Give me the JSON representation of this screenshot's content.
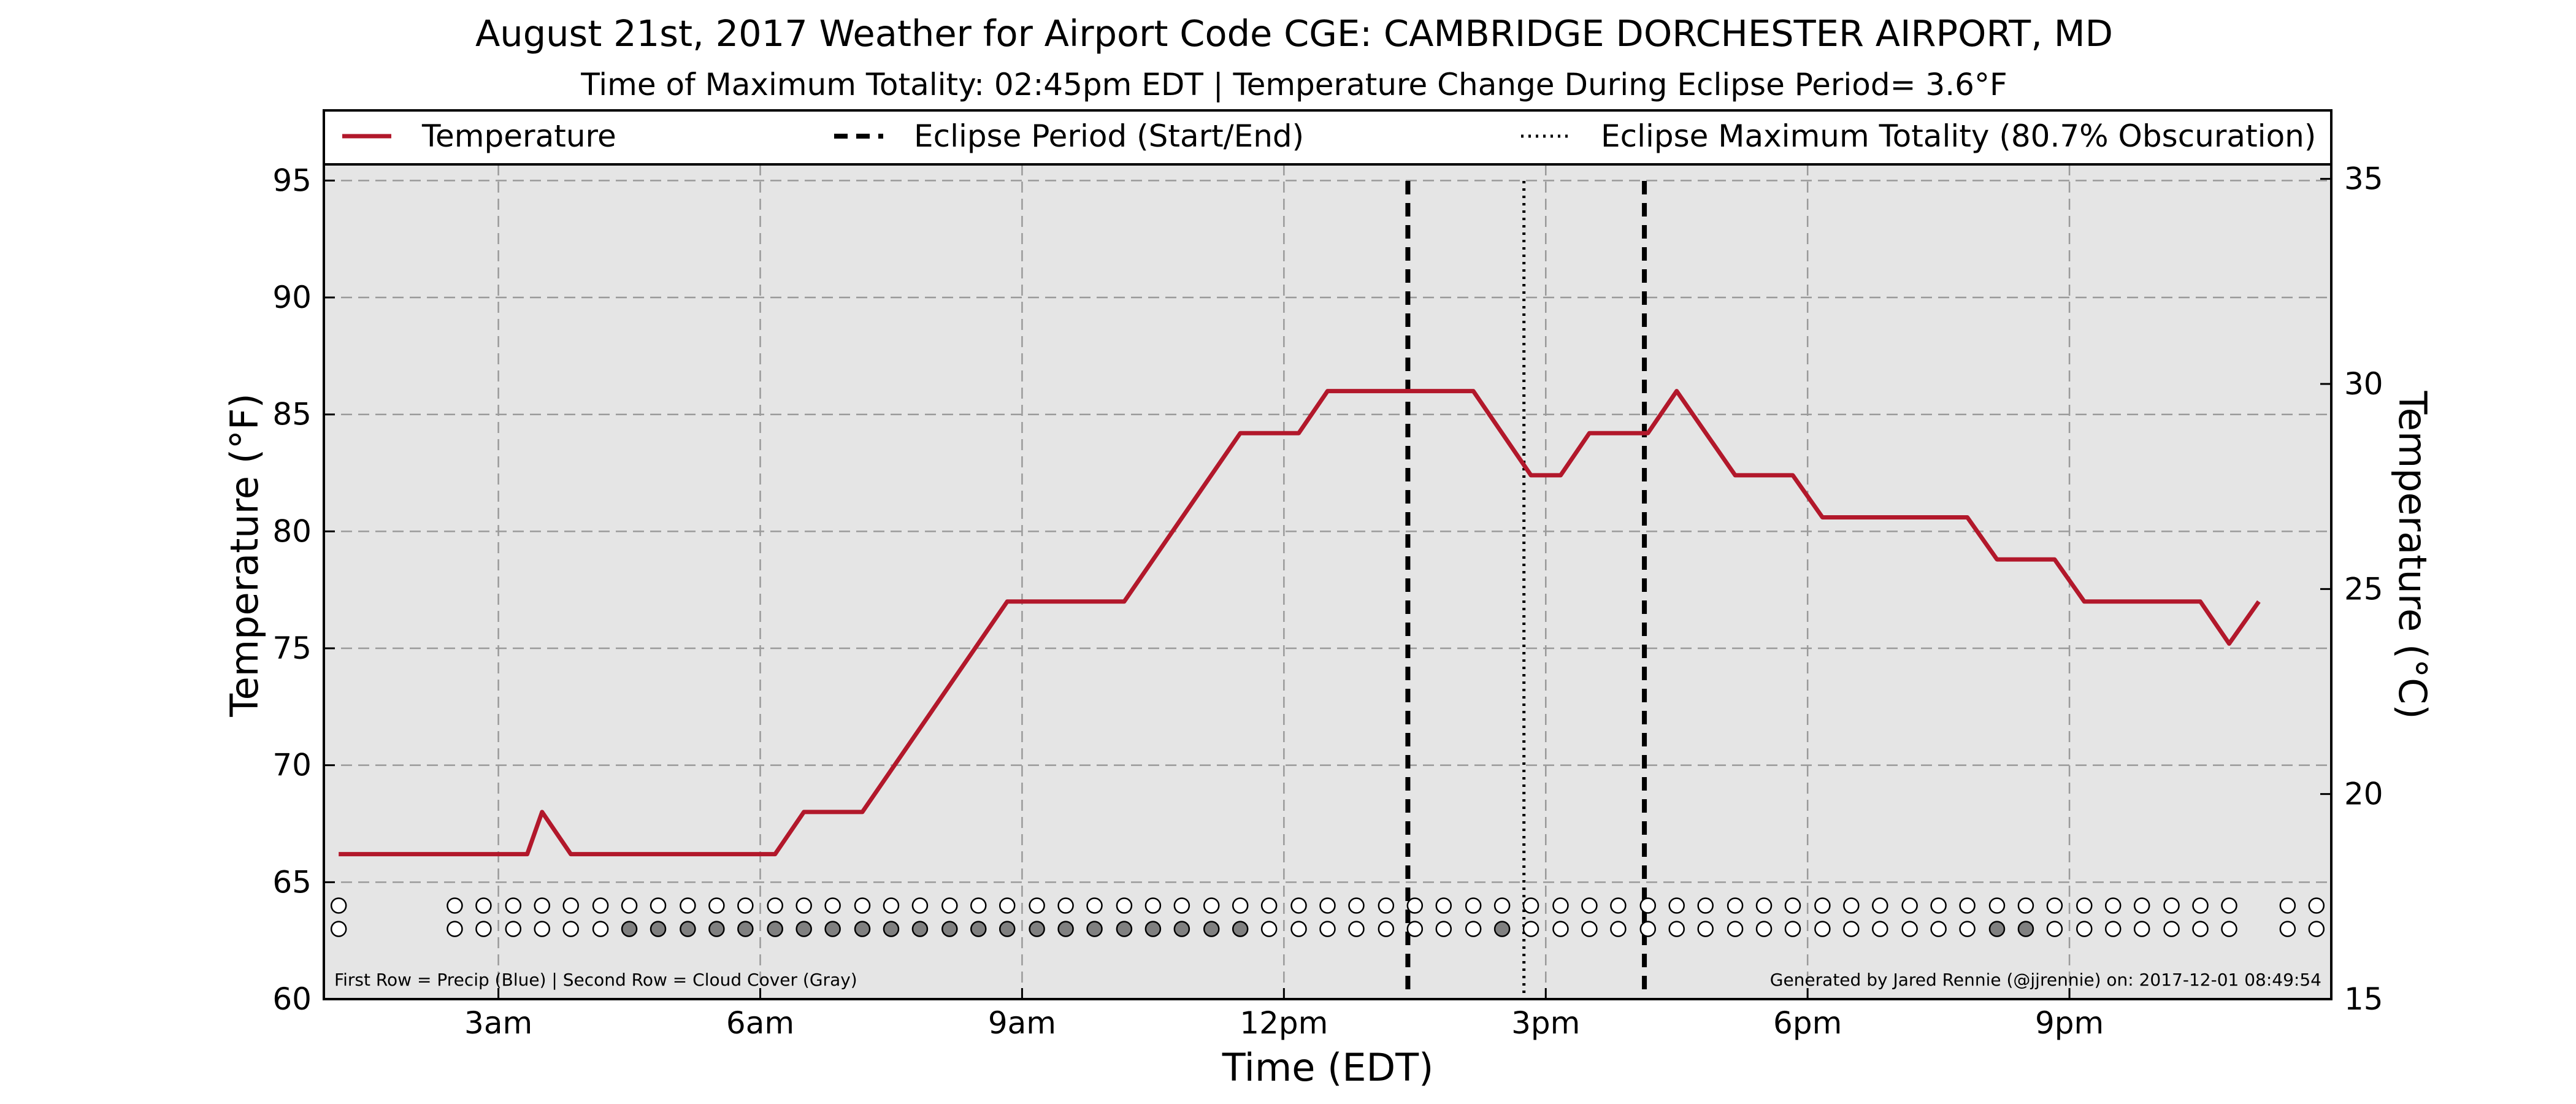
{
  "chart_data": {
    "type": "line",
    "title": "August 21st, 2017 Weather for Airport Code CGE: CAMBRIDGE DORCHESTER AIRPORT, MD",
    "subtitle": "Time of Maximum Totality: 02:45pm EDT | Temperature Change During Eclipse Period= 3.6°F",
    "xlabel": "Time (EDT)",
    "ylabel": "Temperature (°F)",
    "ylabel_right": "Temperature (°C)",
    "x_unit": "hours since midnight EDT",
    "xlim": [
      1,
      24
    ],
    "ylim": [
      60,
      98
    ],
    "ylim_right": [
      15,
      36.67
    ],
    "x_ticks": [
      {
        "x": 3,
        "label": "3am"
      },
      {
        "x": 6,
        "label": "6am"
      },
      {
        "x": 9,
        "label": "9am"
      },
      {
        "x": 12,
        "label": "12pm"
      },
      {
        "x": 15,
        "label": "3pm"
      },
      {
        "x": 18,
        "label": "6pm"
      },
      {
        "x": 21,
        "label": "9pm"
      }
    ],
    "y_ticks": [
      60,
      65,
      70,
      75,
      80,
      85,
      90,
      95
    ],
    "y_ticks_right": [
      15,
      20,
      25,
      30,
      35
    ],
    "grid": true,
    "legend_position": "top",
    "series": [
      {
        "name": "Temperature",
        "color": "#b2182b",
        "points": [
          [
            1.17,
            66.2
          ],
          [
            3.17,
            66.2
          ],
          [
            3.33,
            66.2
          ],
          [
            3.5,
            68.0
          ],
          [
            3.83,
            66.2
          ],
          [
            5.83,
            66.2
          ],
          [
            6.17,
            66.2
          ],
          [
            6.5,
            68.0
          ],
          [
            7.17,
            68.0
          ],
          [
            8.83,
            77.0
          ],
          [
            10.17,
            77.0
          ],
          [
            11.5,
            84.2
          ],
          [
            12.17,
            84.2
          ],
          [
            12.5,
            86.0
          ],
          [
            14.17,
            86.0
          ],
          [
            14.83,
            82.4
          ],
          [
            15.17,
            82.4
          ],
          [
            15.5,
            84.2
          ],
          [
            16.17,
            84.2
          ],
          [
            16.5,
            86.0
          ],
          [
            17.17,
            82.4
          ],
          [
            17.83,
            82.4
          ],
          [
            18.17,
            80.6
          ],
          [
            19.17,
            80.6
          ],
          [
            19.83,
            80.6
          ],
          [
            20.17,
            78.8
          ],
          [
            20.83,
            78.8
          ],
          [
            21.17,
            77.0
          ],
          [
            22.5,
            77.0
          ],
          [
            22.83,
            75.2
          ],
          [
            23.17,
            77.0
          ]
        ]
      }
    ],
    "eclipse_start": 13.42,
    "eclipse_end": 16.13,
    "eclipse_max": 14.75,
    "legend": [
      {
        "label": "Temperature",
        "style": "solid",
        "color": "#b2182b"
      },
      {
        "label": "Eclipse Period (Start/End)",
        "style": "dashed",
        "color": "#000000"
      },
      {
        "label": "Eclipse Maximum Totality (80.7% Obscuration)",
        "style": "dotted",
        "color": "#000000"
      }
    ],
    "indicator_rows": {
      "precip_y": 64.0,
      "cloud_y": 63.0,
      "times": [
        1.17,
        2.5,
        2.83,
        3.17,
        3.5,
        3.83,
        4.17,
        4.5,
        4.83,
        5.17,
        5.5,
        5.83,
        6.17,
        6.5,
        6.83,
        7.17,
        7.5,
        7.83,
        8.17,
        8.5,
        8.83,
        9.17,
        9.5,
        9.83,
        10.17,
        10.5,
        10.83,
        11.17,
        11.5,
        11.83,
        12.17,
        12.5,
        12.83,
        13.17,
        13.5,
        13.83,
        14.17,
        14.5,
        14.83,
        15.17,
        15.5,
        15.83,
        16.17,
        16.5,
        16.83,
        17.17,
        17.5,
        17.83,
        18.17,
        18.5,
        18.83,
        19.17,
        19.5,
        19.83,
        20.17,
        20.5,
        20.83,
        21.17,
        21.5,
        21.83,
        22.17,
        22.5,
        22.83,
        23.5,
        23.83,
        24.17
      ],
      "cloud_gray_times": [
        4.5,
        4.83,
        5.17,
        5.5,
        5.83,
        6.17,
        6.5,
        6.83,
        7.17,
        7.5,
        7.83,
        8.17,
        8.5,
        8.83,
        9.17,
        9.5,
        9.83,
        10.17,
        10.5,
        10.83,
        11.17,
        11.5,
        14.5,
        20.17,
        20.5
      ],
      "precip_color": "#ffffff",
      "cloud_clear_color": "#ffffff",
      "cloud_gray_color": "#808080"
    },
    "footnote_left": "First Row = Precip (Blue) | Second Row = Cloud Cover (Gray)",
    "footnote_right": "Generated by Jared Rennie (@jjrennie) on: 2017-12-01 08:49:54"
  }
}
